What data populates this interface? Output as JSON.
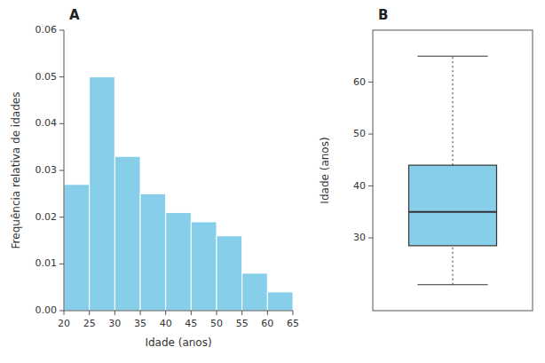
{
  "chart_data": [
    {
      "type": "histogram",
      "title": "A",
      "bins": [
        20,
        25,
        30,
        35,
        40,
        45,
        50,
        55,
        60,
        65
      ],
      "values": [
        0.027,
        0.05,
        0.033,
        0.025,
        0.021,
        0.019,
        0.016,
        0.008,
        0.004
      ],
      "color": "#87CEEB",
      "x_label": "Idade (anos)",
      "y_label": "Frequência relativa de idades",
      "xlim": [
        20,
        65
      ],
      "ylim": [
        0,
        0.06
      ],
      "xticks": [
        20,
        25,
        30,
        35,
        40,
        45,
        50,
        55,
        60,
        65
      ],
      "yticks": [
        {
          "value": 0.0,
          "label": "0.00"
        },
        0.01,
        0.02,
        0.03,
        0.04,
        0.05,
        0.06
      ],
      "grid": false
    },
    {
      "type": "box",
      "title": "B",
      "whisker_low": 21,
      "q1": 28.5,
      "median": 35,
      "q3": 44,
      "whisker_high": 65,
      "color": "#87CEEB",
      "y_label": "Idade (anos)",
      "ylim": [
        16,
        70
      ],
      "yticks": [
        30,
        40,
        50,
        60
      ],
      "tick_labels": "y",
      "grid": false
    }
  ]
}
